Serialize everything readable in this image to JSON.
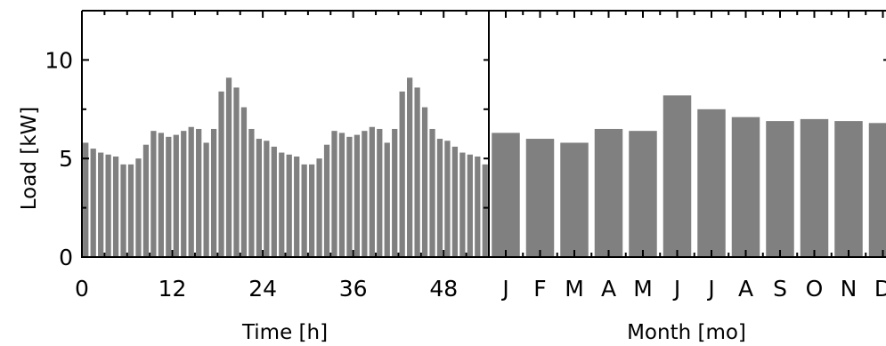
{
  "chart_data": [
    {
      "type": "bar",
      "xlabel": "Time [h]",
      "ylabel": "Load [kW]",
      "x_ticks": [
        "0",
        "12",
        "24",
        "36",
        "48"
      ],
      "y_ticks": [
        "0",
        "5",
        "10"
      ],
      "xlim": [
        0,
        54
      ],
      "ylim": [
        0,
        12.5
      ],
      "grid": false,
      "bar_color": "#808080",
      "x": [
        0,
        1,
        2,
        3,
        4,
        5,
        6,
        7,
        8,
        9,
        10,
        11,
        12,
        13,
        14,
        15,
        16,
        17,
        18,
        19,
        20,
        21,
        22,
        23,
        24,
        25,
        26,
        27,
        28,
        29,
        30,
        31,
        32,
        33,
        34,
        35,
        36,
        37,
        38,
        39,
        40,
        41,
        42,
        43,
        44,
        45,
        46,
        47,
        48,
        49,
        50,
        51,
        52,
        53
      ],
      "values": [
        5.8,
        5.5,
        5.3,
        5.2,
        5.1,
        4.7,
        4.7,
        5.0,
        5.7,
        6.4,
        6.3,
        6.1,
        6.2,
        6.4,
        6.6,
        6.5,
        5.8,
        6.5,
        8.4,
        9.1,
        8.6,
        7.6,
        6.5,
        6.0,
        5.9,
        5.6,
        5.3,
        5.2,
        5.1,
        4.7,
        4.7,
        5.0,
        5.7,
        6.4,
        6.3,
        6.1,
        6.2,
        6.4,
        6.6,
        6.5,
        5.8,
        6.5,
        8.4,
        9.1,
        8.6,
        7.6,
        6.5,
        6.0,
        5.9,
        5.6,
        5.3,
        5.2,
        5.1,
        4.7
      ]
    },
    {
      "type": "bar",
      "xlabel": "Month [mo]",
      "ylabel": "",
      "categories": [
        "J",
        "F",
        "M",
        "A",
        "M",
        "J",
        "J",
        "A",
        "S",
        "O",
        "N",
        "D"
      ],
      "ylim": [
        0,
        12.5
      ],
      "grid": false,
      "bar_color": "#808080",
      "values": [
        6.3,
        6.0,
        5.8,
        6.5,
        6.4,
        8.2,
        7.5,
        7.1,
        6.9,
        7.0,
        6.9,
        6.8
      ]
    }
  ]
}
